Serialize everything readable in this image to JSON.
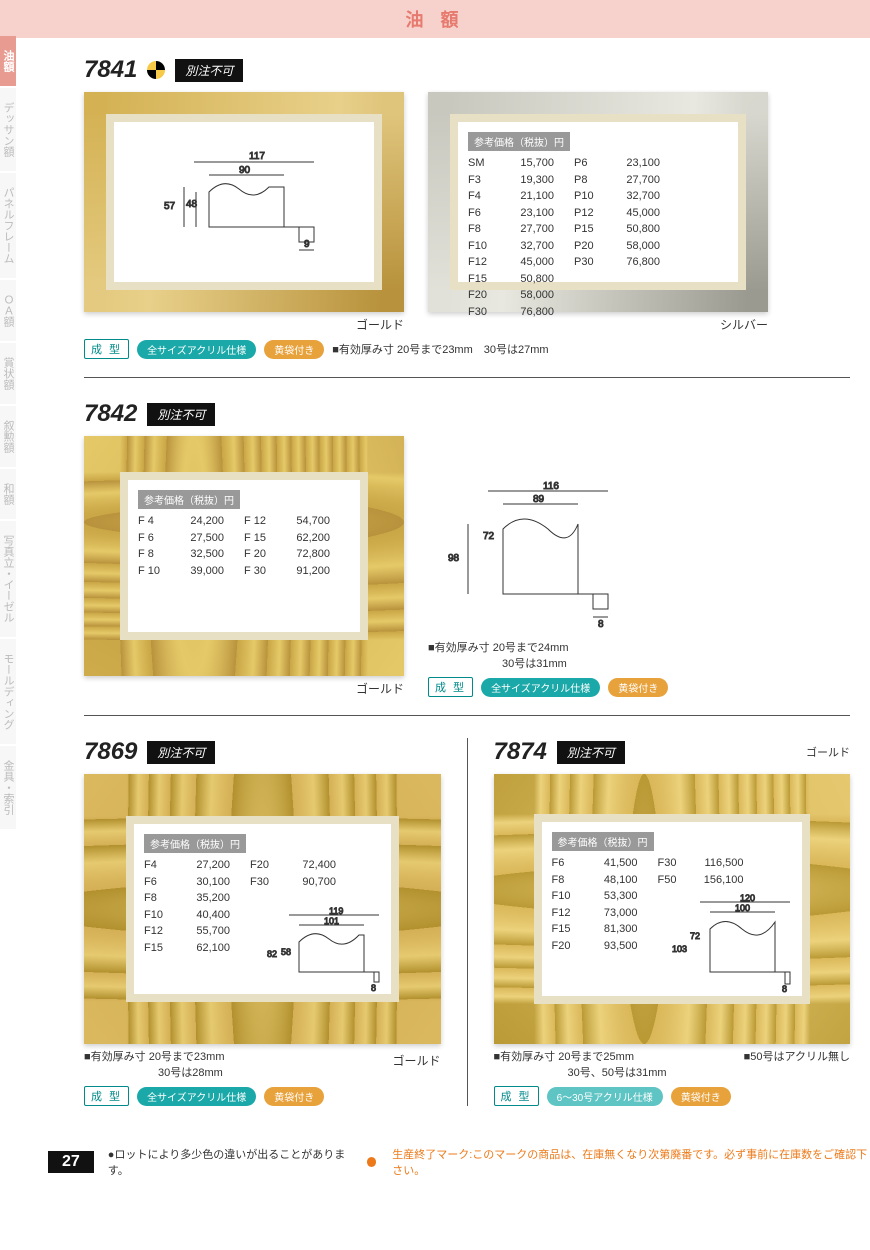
{
  "page_title": "油 額",
  "page_number": "27",
  "sidebar": {
    "items": [
      {
        "label": "油額",
        "active": true
      },
      {
        "label": "デッサン額",
        "active": false
      },
      {
        "label": "パネルフレーム",
        "active": false
      },
      {
        "label": "ＯＡ額",
        "active": false
      },
      {
        "label": "賞状額",
        "active": false
      },
      {
        "label": "叙勲額",
        "active": false
      },
      {
        "label": "和額",
        "active": false
      },
      {
        "label": "写真立・イーゼル",
        "active": false
      },
      {
        "label": "モールディング",
        "active": false
      },
      {
        "label": "金具・索引",
        "active": false
      }
    ]
  },
  "badges": {
    "mold": "成 型",
    "acryl_all": "全サイズアクリル仕様",
    "acryl_630": "6〜30号アクリル仕様",
    "bag": "黄袋付き",
    "no_custom": "別注不可",
    "price_header": "参考価格（税抜）円"
  },
  "products": {
    "p7841": {
      "number": "7841",
      "colors": {
        "gold": "ゴールド",
        "silver": "シルバー"
      },
      "profile": {
        "w_out": "117",
        "w_in": "90",
        "h_in": "48",
        "h_out": "57",
        "margin": "9"
      },
      "thickness_note": "■有効厚み寸 20号まで23mm　30号は27mm",
      "price_cols": [
        [
          {
            "sz": "SM",
            "val": "15,700"
          },
          {
            "sz": "F3",
            "val": "19,300"
          },
          {
            "sz": "F4",
            "val": "21,100"
          },
          {
            "sz": "F6",
            "val": "23,100"
          },
          {
            "sz": "F8",
            "val": "27,700"
          },
          {
            "sz": "F10",
            "val": "32,700"
          },
          {
            "sz": "F12",
            "val": "45,000"
          },
          {
            "sz": "F15",
            "val": "50,800"
          },
          {
            "sz": "F20",
            "val": "58,000"
          },
          {
            "sz": "F30",
            "val": "76,800"
          }
        ],
        [
          {
            "sz": "P6",
            "val": "23,100"
          },
          {
            "sz": "P8",
            "val": "27,700"
          },
          {
            "sz": "P10",
            "val": "32,700"
          },
          {
            "sz": "P12",
            "val": "45,000"
          },
          {
            "sz": "P15",
            "val": "50,800"
          },
          {
            "sz": "P20",
            "val": "58,000"
          },
          {
            "sz": "P30",
            "val": "76,800"
          }
        ]
      ]
    },
    "p7842": {
      "number": "7842",
      "color": "ゴールド",
      "profile": {
        "w_out": "116",
        "w_in": "89",
        "h_in": "72",
        "h_out": "98",
        "margin": "8"
      },
      "thickness_note1": "■有効厚み寸 20号まで24mm",
      "thickness_note2": "30号は31mm",
      "price_cols": [
        [
          {
            "sz": "F 4",
            "val": "24,200"
          },
          {
            "sz": "F 6",
            "val": "27,500"
          },
          {
            "sz": "F 8",
            "val": "32,500"
          },
          {
            "sz": "F 10",
            "val": "39,000"
          }
        ],
        [
          {
            "sz": "F 12",
            "val": "54,700"
          },
          {
            "sz": "F 15",
            "val": "62,200"
          },
          {
            "sz": "F 20",
            "val": "72,800"
          },
          {
            "sz": "F 30",
            "val": "91,200"
          }
        ]
      ]
    },
    "p7869": {
      "number": "7869",
      "color": "ゴールド",
      "profile": {
        "w_out": "119",
        "w_in": "101",
        "h_in": "58",
        "h_out": "82",
        "margin": "8"
      },
      "thickness_note1": "■有効厚み寸 20号まで23mm",
      "thickness_note2": "30号は28mm",
      "price_cols": [
        [
          {
            "sz": "F4",
            "val": "27,200"
          },
          {
            "sz": "F6",
            "val": "30,100"
          },
          {
            "sz": "F8",
            "val": "35,200"
          },
          {
            "sz": "F10",
            "val": "40,400"
          },
          {
            "sz": "F12",
            "val": "55,700"
          },
          {
            "sz": "F15",
            "val": "62,100"
          }
        ],
        [
          {
            "sz": "F20",
            "val": "72,400"
          },
          {
            "sz": "F30",
            "val": "90,700"
          }
        ]
      ]
    },
    "p7874": {
      "number": "7874",
      "color": "ゴールド",
      "profile": {
        "w_out": "120",
        "w_in": "100",
        "h_in": "72",
        "h_out": "103",
        "margin": "8"
      },
      "thickness_note1": "■有効厚み寸 20号まで25mm",
      "thickness_note2": "30号、50号は31mm",
      "extra_note": "■50号はアクリル無し",
      "price_cols": [
        [
          {
            "sz": "F6",
            "val": "41,500"
          },
          {
            "sz": "F8",
            "val": "48,100"
          },
          {
            "sz": "F10",
            "val": "53,300"
          },
          {
            "sz": "F12",
            "val": "73,000"
          },
          {
            "sz": "F15",
            "val": "81,300"
          },
          {
            "sz": "F20",
            "val": "93,500"
          }
        ],
        [
          {
            "sz": "F30",
            "val": "116,500"
          },
          {
            "sz": "F50",
            "val": "156,100"
          }
        ]
      ]
    }
  },
  "footer": {
    "lot_note": "●ロットにより多少色の違いが出ることがあります。",
    "discontinue_note": "生産終了マーク:このマークの商品は、在庫無くなり次第廃番です。必ず事前に在庫数をご確認下さい。"
  }
}
